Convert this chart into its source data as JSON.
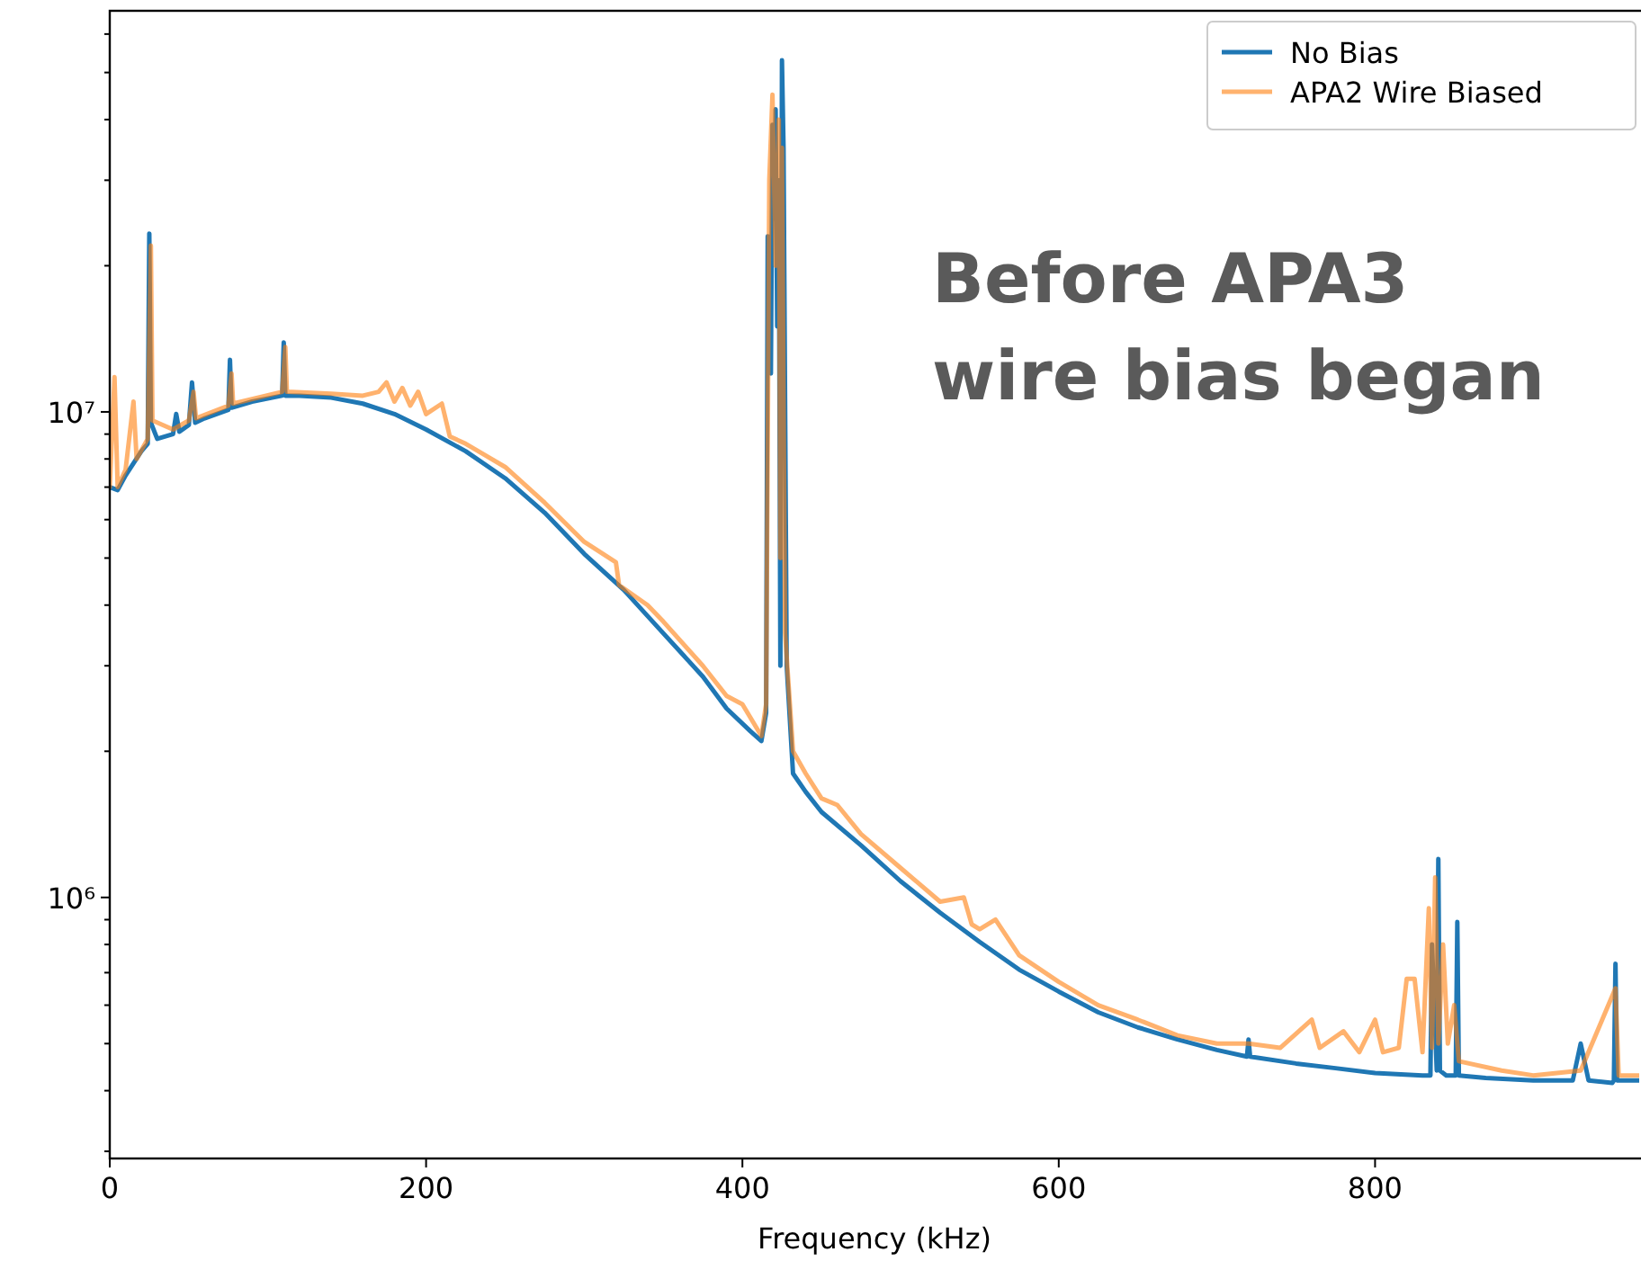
{
  "chart_data": {
    "type": "line",
    "xlabel": "Frequency (kHz)",
    "log": "y",
    "legend": "top right",
    "grid": false,
    "line_style": "solid",
    "marker": "none",
    "xlim": [
      0,
      967
    ],
    "xticks": [
      0,
      200,
      400,
      600,
      800
    ],
    "ylim": [
      290000,
      67000000
    ],
    "yticks": [
      {
        "value": 300000,
        "label": null
      },
      {
        "value": 400000,
        "label": null
      },
      {
        "value": 500000,
        "label": null
      },
      {
        "value": 600000,
        "label": null
      },
      {
        "value": 700000,
        "label": null
      },
      {
        "value": 800000,
        "label": null
      },
      {
        "value": 900000,
        "label": null
      },
      {
        "value": 1000000,
        "label": "10⁶"
      },
      {
        "value": 2000000,
        "label": null
      },
      {
        "value": 3000000,
        "label": null
      },
      {
        "value": 4000000,
        "label": null
      },
      {
        "value": 5000000,
        "label": null
      },
      {
        "value": 6000000,
        "label": null
      },
      {
        "value": 7000000,
        "label": null
      },
      {
        "value": 8000000,
        "label": null
      },
      {
        "value": 9000000,
        "label": null
      },
      {
        "value": 10000000,
        "label": "10⁷"
      },
      {
        "value": 20000000,
        "label": null
      },
      {
        "value": 30000000,
        "label": null
      },
      {
        "value": 40000000,
        "label": null
      },
      {
        "value": 50000000,
        "label": null
      },
      {
        "value": 60000000,
        "label": null
      }
    ],
    "annotations": [
      "Before APA3\nwire bias began"
    ],
    "series": [
      {
        "name": "No Bias",
        "color": "#1f77b4",
        "x": [
          0,
          5,
          10,
          20,
          24,
          25,
          26,
          30,
          40,
          42,
          44,
          50,
          52,
          54,
          60,
          75,
          76,
          77,
          90,
          109,
          110,
          111,
          120,
          140,
          160,
          180,
          200,
          225,
          250,
          275,
          300,
          325,
          350,
          375,
          390,
          405,
          412,
          415,
          416,
          418,
          419,
          420,
          421,
          422,
          423,
          424,
          425,
          426,
          428,
          432,
          440,
          450,
          475,
          500,
          525,
          550,
          575,
          600,
          625,
          650,
          675,
          700,
          719,
          720,
          721,
          750,
          775,
          800,
          830,
          835,
          836,
          839,
          840,
          841,
          845,
          851,
          852,
          853,
          870,
          900,
          925,
          930,
          935,
          950,
          951,
          952,
          953,
          967
        ],
        "values": [
          7000000,
          6900000,
          7400000,
          8300000,
          8600000,
          23300000,
          9500000,
          8800000,
          9000000,
          9900000,
          9100000,
          9400000,
          11500000,
          9500000,
          9700000,
          10100000,
          12800000,
          10200000,
          10500000,
          10800000,
          13900000,
          10800000,
          10800000,
          10700000,
          10400000,
          9900000,
          9200000,
          8300000,
          7300000,
          6200000,
          5100000,
          4300000,
          3500000,
          2850000,
          2450000,
          2200000,
          2100000,
          2400000,
          23000000,
          12000000,
          39000000,
          25000000,
          42000000,
          15000000,
          30000000,
          3000000,
          53000000,
          35000000,
          3000000,
          1800000,
          1650000,
          1500000,
          1280000,
          1080000,
          930000,
          810000,
          710000,
          640000,
          580000,
          540000,
          510000,
          485000,
          470000,
          510000,
          470000,
          455000,
          445000,
          435000,
          430000,
          430000,
          800000,
          440000,
          1200000,
          440000,
          430000,
          430000,
          890000,
          430000,
          425000,
          420000,
          420000,
          500000,
          420000,
          415000,
          420000,
          730000,
          420000,
          420000
        ]
      },
      {
        "name": "APA2 Wire Biased",
        "color": "#ff7f0e",
        "x": [
          0,
          3,
          5,
          10,
          15,
          17,
          24,
          26,
          27,
          40,
          50,
          53,
          54.5,
          75,
          77,
          78,
          109,
          111,
          112,
          140,
          160,
          170,
          175,
          180,
          185,
          190,
          195,
          200,
          210,
          215,
          225,
          250,
          275,
          300,
          320,
          322,
          340,
          350,
          375,
          390,
          400,
          412,
          415,
          417,
          419,
          421,
          423,
          424,
          425,
          427,
          432,
          440,
          450,
          460,
          475,
          500,
          525,
          540,
          545,
          550,
          560,
          575,
          600,
          625,
          650,
          675,
          700,
          720,
          740,
          760,
          765,
          780,
          790,
          800,
          805,
          815,
          820,
          825,
          830,
          834,
          836,
          838,
          840,
          843,
          846,
          850,
          853,
          880,
          900,
          930,
          952,
          954,
          967
        ],
        "values": [
          7000000,
          11800000,
          7000000,
          7600000,
          10500000,
          8000000,
          8800000,
          22000000,
          9600000,
          9200000,
          9600000,
          11000000,
          9700000,
          10300000,
          12000000,
          10400000,
          11000000,
          13600000,
          11000000,
          10900000,
          10800000,
          11000000,
          11500000,
          10500000,
          11200000,
          10300000,
          11000000,
          9900000,
          10400000,
          8900000,
          8600000,
          7700000,
          6500000,
          5400000,
          4900000,
          4400000,
          4000000,
          3700000,
          3000000,
          2600000,
          2500000,
          2150000,
          2500000,
          30000000,
          45000000,
          20000000,
          40000000,
          5000000,
          35000000,
          3500000,
          2000000,
          1800000,
          1600000,
          1550000,
          1350000,
          1150000,
          980000,
          1000000,
          880000,
          860000,
          900000,
          760000,
          670000,
          600000,
          560000,
          520000,
          500000,
          500000,
          490000,
          560000,
          490000,
          530000,
          480000,
          560000,
          480000,
          490000,
          680000,
          680000,
          480000,
          950000,
          490000,
          1100000,
          500000,
          800000,
          500000,
          600000,
          460000,
          440000,
          430000,
          440000,
          650000,
          430000,
          430000
        ]
      }
    ]
  }
}
